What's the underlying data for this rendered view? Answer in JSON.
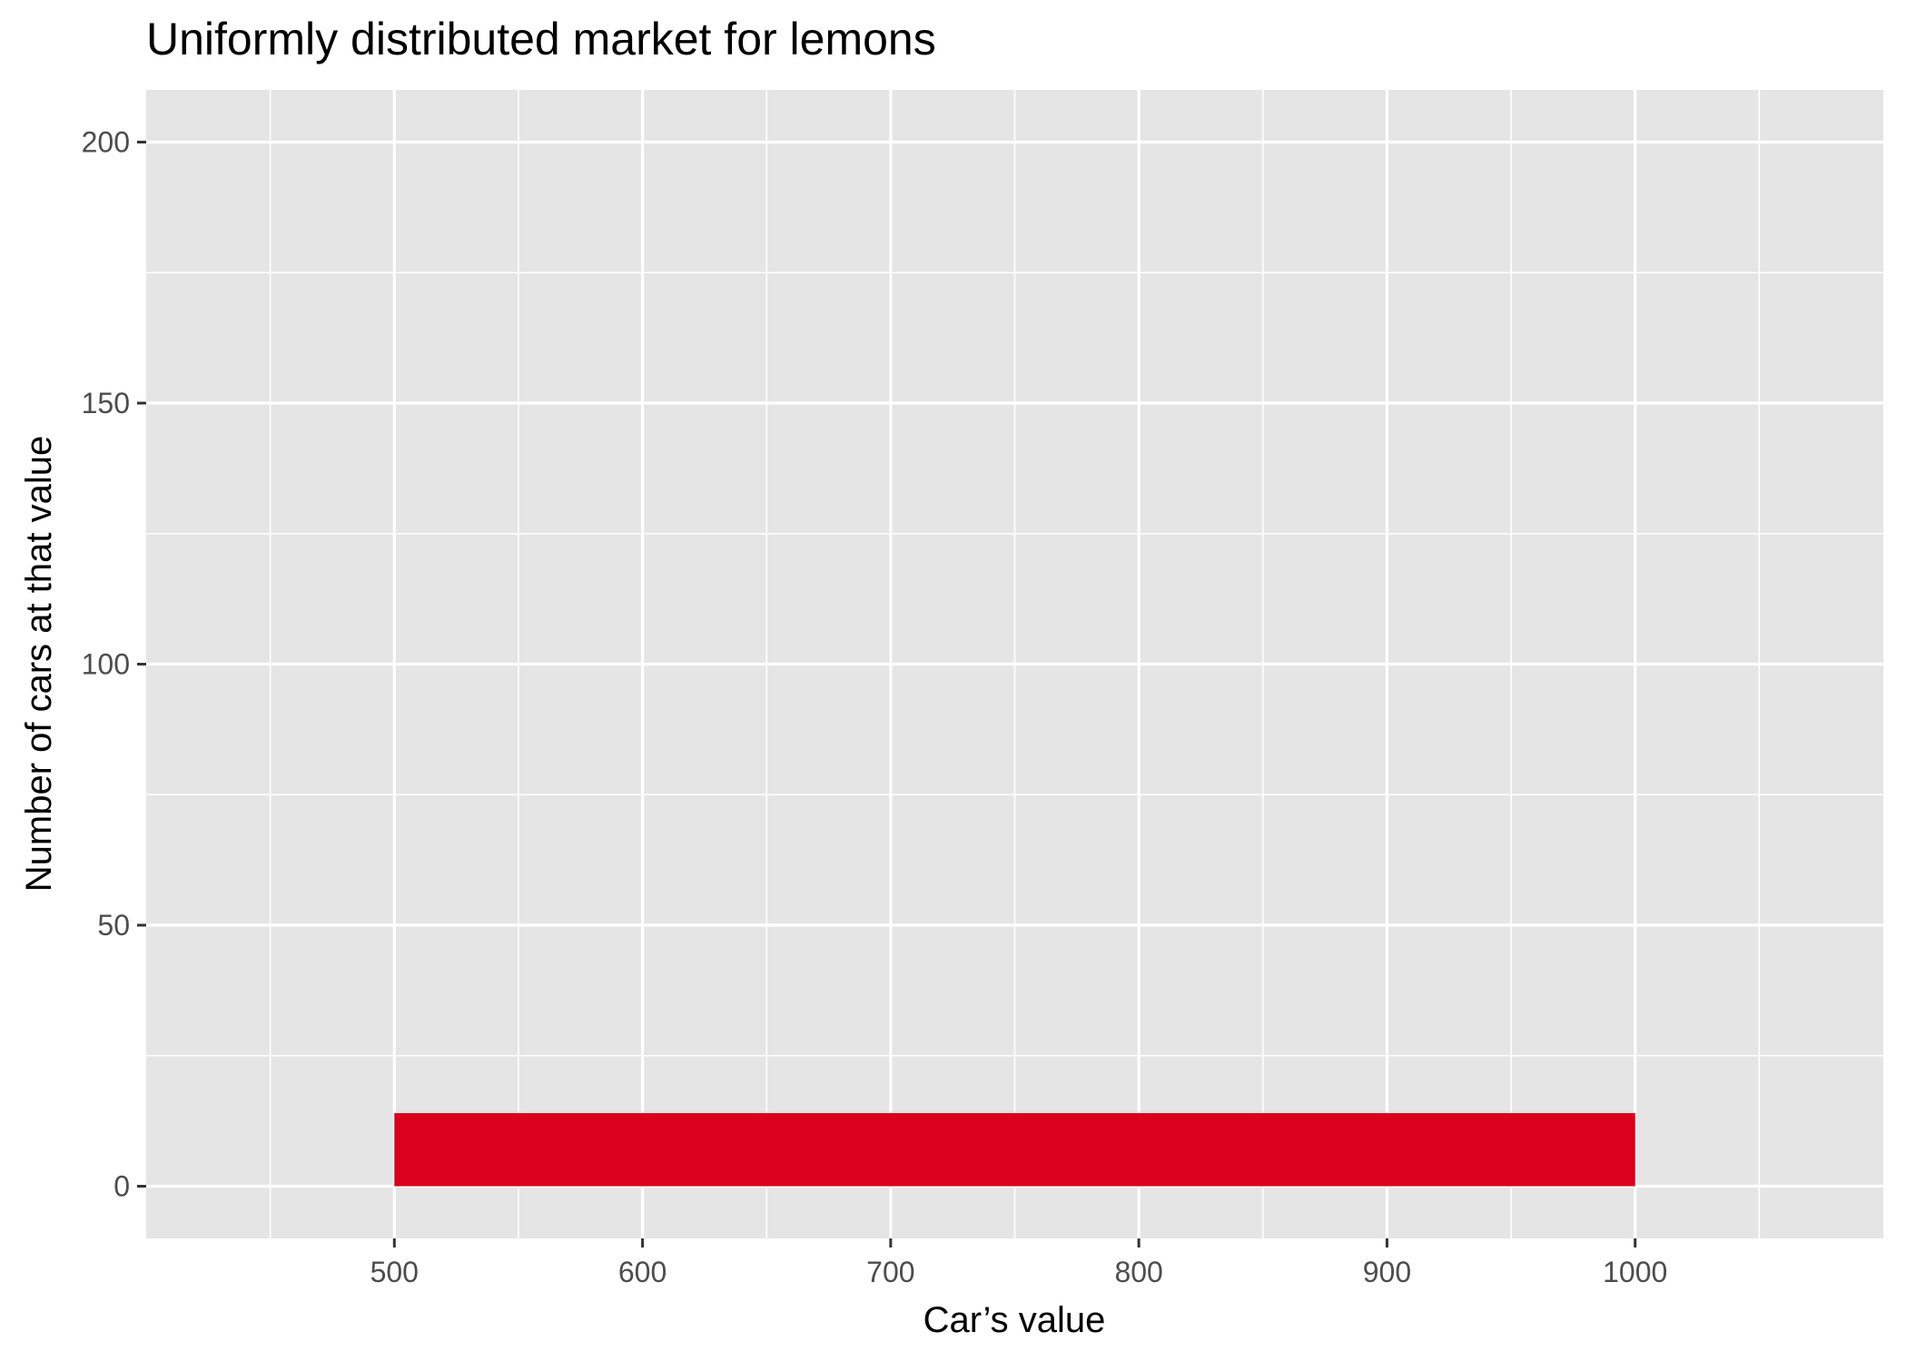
{
  "chart_data": {
    "type": "bar",
    "title": "Uniformly distributed market for lemons",
    "xlabel": "Car’s value",
    "ylabel": "Number of cars at that value",
    "xlim": [
      400,
      1100
    ],
    "ylim": [
      -10,
      210
    ],
    "x_ticks": [
      500,
      600,
      700,
      800,
      900,
      1000
    ],
    "y_ticks": [
      0,
      50,
      100,
      150,
      200
    ],
    "x_tick_labels": [
      "500",
      "600",
      "700",
      "800",
      "900",
      "1000"
    ],
    "y_tick_labels": [
      "0",
      "50",
      "100",
      "150",
      "200"
    ],
    "grid": true,
    "bins": [
      {
        "x_start": 500,
        "x_end": 1000,
        "value": 14
      }
    ],
    "colors": {
      "panel": "#e5e5e5",
      "grid": "#ffffff",
      "bar": "#db001b",
      "tick_text": "#4d4d4d",
      "text": "#000000"
    }
  }
}
